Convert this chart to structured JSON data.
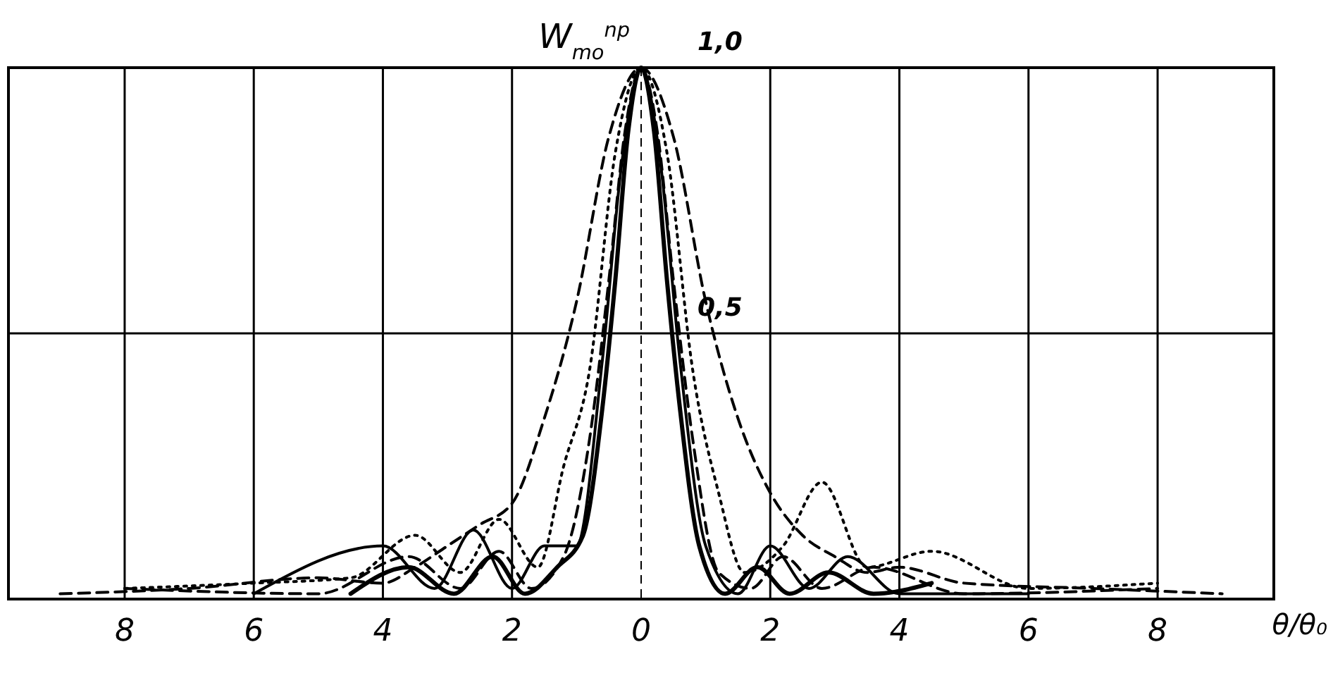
{
  "chart_data": {
    "type": "line",
    "ylabel": "W$_{mo}$$^{np}$",
    "xlabel": "θ/θ₀",
    "xlim": [
      -9.8,
      9.8
    ],
    "ylim": [
      0,
      1.0
    ],
    "xticks": [
      {
        "value": -8,
        "label": "8"
      },
      {
        "value": -6,
        "label": "6"
      },
      {
        "value": -4,
        "label": "4"
      },
      {
        "value": -2,
        "label": "2"
      },
      0,
      2,
      4,
      6,
      8
    ],
    "yticks": [
      {
        "value": 0.5,
        "label": "0,5"
      },
      {
        "value": 1,
        "label": "1,0"
      }
    ],
    "grid": true,
    "ref_lines": [
      {
        "axis": "x",
        "value": 0,
        "line_style": "dashed"
      }
    ],
    "series": [
      {
        "color": "#000000",
        "line_style": "dashed",
        "x": [
          -9,
          -7,
          -5,
          -4,
          -3.5,
          -3,
          -2.5,
          -2,
          -1.5,
          -1,
          -0.5,
          0,
          0.5,
          1,
          1.5,
          2,
          2.5,
          3,
          3.5,
          4,
          5,
          7,
          9
        ],
        "values": [
          0.01,
          0.02,
          0.04,
          0.03,
          0.06,
          0.1,
          0.14,
          0.18,
          0.34,
          0.56,
          0.87,
          1.0,
          0.87,
          0.56,
          0.34,
          0.2,
          0.12,
          0.08,
          0.05,
          0.06,
          0.03,
          0.02,
          0.01
        ]
      },
      {
        "color": "#000000",
        "line_style": "dotted",
        "x": [
          -8,
          -6,
          -4.5,
          -3.5,
          -2.8,
          -2.2,
          -1.6,
          -1.2,
          -0.8,
          -0.4,
          0,
          0.4,
          0.8,
          1.2,
          1.6,
          2.2,
          2.8,
          3.5,
          4.5,
          6,
          8
        ],
        "values": [
          0.02,
          0.03,
          0.04,
          0.12,
          0.05,
          0.15,
          0.06,
          0.25,
          0.43,
          0.84,
          1.0,
          0.84,
          0.43,
          0.2,
          0.05,
          0.1,
          0.22,
          0.06,
          0.09,
          0.02,
          0.03
        ]
      },
      {
        "color": "#000000",
        "line_style": "solid",
        "x": [
          -6,
          -4,
          -3.2,
          -2.6,
          -2,
          -1.5,
          -1,
          -0.6,
          -0.3,
          0,
          0.3,
          0.6,
          1,
          1.5,
          2,
          2.6,
          3.2,
          4,
          6
        ],
        "values": [
          0.01,
          0.1,
          0.02,
          0.13,
          0.02,
          0.1,
          0.1,
          0.45,
          0.82,
          1.0,
          0.82,
          0.45,
          0.1,
          0.01,
          0.1,
          0.02,
          0.08,
          0.01,
          0.01
        ]
      },
      {
        "color": "#000000",
        "line_style": "dashed",
        "x": [
          -8,
          -5,
          -3.6,
          -2.8,
          -2.2,
          -1.7,
          -1.2,
          -0.8,
          -0.5,
          -0.25,
          0,
          0.25,
          0.5,
          0.8,
          1.2,
          1.7,
          2.2,
          2.8,
          3.6,
          5,
          8
        ],
        "values": [
          0.02,
          0.01,
          0.08,
          0.02,
          0.09,
          0.02,
          0.08,
          0.3,
          0.6,
          0.88,
          1.0,
          0.88,
          0.6,
          0.3,
          0.05,
          0.02,
          0.08,
          0.02,
          0.06,
          0.01,
          0.02
        ]
      },
      {
        "color": "#000000",
        "line_style": "solid",
        "x": [
          -4.5,
          -3.6,
          -2.9,
          -2.3,
          -1.8,
          -1.3,
          -0.9,
          -0.6,
          -0.4,
          -0.2,
          0,
          0.2,
          0.4,
          0.6,
          0.9,
          1.3,
          1.8,
          2.3,
          2.9,
          3.6,
          4.5
        ],
        "values": [
          0.01,
          0.06,
          0.01,
          0.08,
          0.01,
          0.06,
          0.12,
          0.36,
          0.6,
          0.88,
          1.0,
          0.88,
          0.6,
          0.36,
          0.1,
          0.01,
          0.06,
          0.01,
          0.05,
          0.01,
          0.03
        ]
      }
    ]
  }
}
